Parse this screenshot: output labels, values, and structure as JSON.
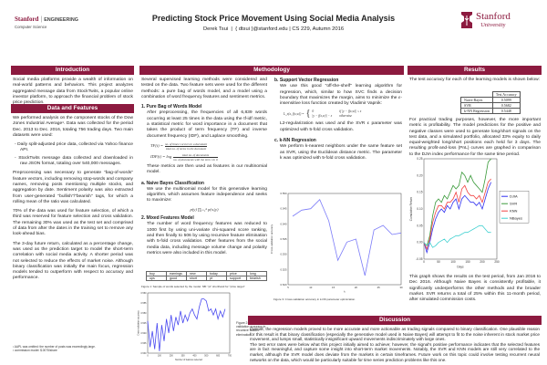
{
  "header": {
    "left_logo": {
      "brand": "Stanford",
      "divider": "|",
      "dept": "ENGINEERING",
      "sub": "Computer Science"
    },
    "title": "Predicting Stock Price Movement Using Social Media Analysis",
    "authors": "Derek Tsui  |  { dtsui }@stanford.edu | CS 229, Autumn 2016",
    "right_logo": {
      "line1": "Stanford",
      "line2": "University"
    },
    "accent_color": "#8c1a3f"
  },
  "introduction": {
    "title": "Introduction",
    "text": "Social media platforms provide a wealth of information on real-world patterns and behaviors. This project analyzes aggregated message data from StockTwits, a popular online investor platform, to approach the financial problem of stock price prediction."
  },
  "data_features": {
    "title": "Data and Features",
    "p1": "We performed analysis on the component stocks of the Dow Jones Industrial Average¹. Data was collected for the period Dec. 2013 to Dec. 2016, totaling 756 trading days. Two main datasets were used:",
    "bullets": [
      "-  Daily split-adjusted price data, collected via Yahoo finance API.",
      "-  StockTwits message data collected and downloaded in raw JSON format, totaling over 540,000 messages."
    ],
    "p2": "Preprocessing was necessary to generate \"bag-of-words\" feature vectors, including removing stop-words and company names, removing posts mentioning multiple stocks, and aggregation by date. Sentiment polarity was also extracted from user-generated \"bullish\"/\"bearish\" tags, for which a rolling mean of the ratio was calculated.",
    "p3": "70% of the data was used for feature selection, of which a third was reserved for feature selection and cross validation. The remaining 30% was used as the test set and comprised of data from after the dates in the training set to remove any look-ahead bias.",
    "p4": "The 3-day future return, calculated as a percentage change, was used as the prediction target to model the short-term correlation with social media activity. A shorter period was not selected to reduce the effects of market noise. Although binary classification was initially the main focus, regression models tended to outperform with respect to accuracy and performance.",
    "footnotes": [
      "¹ AAPL was omitted: the number of posts was exceedingly large.",
      "² commission model: $.0075/share"
    ]
  },
  "methodology": {
    "title": "Methodology",
    "intro": "Several supervised learning methods were considered and tested on the data. Two feature sets were used for the different methods: a pure bag of words model, and a model using a combination of word frequency features and sentiment metrics.",
    "bow_title": "1. Pure Bag of Words Model",
    "bow_text": "After preprocessing, the frequencies of all 6,839 words occurring at least 25 times in the data using the tf-idf metric, a statistical metric for word importance in a document that takes the product of term frequency (TF) and inverse document frequency (IDF), and Laplace smoothing.",
    "tf_lhs": "TF(t) =",
    "tf_num": "no. of times t occurs in a document",
    "tf_den": "total no. of terms in the document",
    "idf_lhs": "IDF(t) = log",
    "idf_num": "total no. of documents",
    "idf_den": "no. of documents with the term t in it",
    "bow_after": "These metrics are then used as features in our multinomial model.",
    "nb_title": "a. Naive Bayes Classification",
    "nb_text": "We use the multinomial model for this generative learning algorithm, which assumes feature independence and seeks to maximize:",
    "nb_formula": "p(y) ∏ᵢ₌₁ⁿ p(xᵢ|y)",
    "mixed_title": "2. Mixed Features Model",
    "mixed_text": "The number of word frequency features was reduced to 1000 first by using uni-variate chi-squared score ranking, and then finally to 506 by using recursive feature elimination with 5-fold cross validation. Other features from the social media data, including message volume change and polarity metrics were also included in this model.",
    "words_table": [
      [
        "buy",
        "earnings",
        "new",
        "today",
        "price",
        "long"
      ],
      [
        "ups",
        "good",
        "short",
        "pt",
        "support",
        "bearish"
      ]
    ],
    "fig1_caption": "Figure 1: Sample of words selected by the model. NB: \"pt\" shorthand for \"price target\"",
    "fig2_caption": "Figure 2: Cross-validation accuracy in recursive feature elimination",
    "svr_title": "b. Support Vector Regression",
    "svr_text": "We use this good \"off-the-shelf\" learning algorithm for regression, which, similar to how SVC finds a decision boundary that maximizes the margin, aims to minimize the ε-insensitive loss function created by Vladimir Vapnik:",
    "svr_lhs": "L_ε(x, f(x,w)) =",
    "svr_case1": "0",
    "svr_case1_cond": "if |y − f(x,w)| ≤ ε",
    "svr_case2": "|y − f(x,w)| − ε",
    "svr_case2_cond": "otherwise",
    "svr_after": "L2-regularization was used and the SVR ε parameter was optimized with 5-fold cross validation.",
    "knn_title": "c. k-NN Regression",
    "knn_text": "We perform k-nearest neighbors under the same feature set as SVR, using the Euclidean distance metric. The parameter k was optimized with 5-fold cross validation.",
    "fig3_caption": "Figure 3: Cross-validation accuracy in k-NN parameter optimization."
  },
  "results": {
    "title": "Results",
    "intro": "The test accuracy for each of the learning models is shown below:",
    "table_header": "Test Accuracy",
    "table_rows": [
      [
        "Naive Bayes",
        "0.5099"
      ],
      [
        "SVR",
        "0.5682"
      ],
      [
        "k-NN Regression",
        "0.5448"
      ]
    ],
    "p2": "For practical trading purposes, however, the more important metric is profitability. The model predictions for the positive and negative classes were used to generate long/short signals on the test data, and a simulated portfolio, allocated 33% equity to daily equal-weighted long/short positions each held for 3 days. The resulting profit-and-loss (PnL) curves are graphed in comparison to the DJIA index performance for the same time period.",
    "p3": "This graph shows the results on the test period, from Jan 2016 to Dec 2016. Although Naive Bayes is consistently profitable, it significantly underperforms the other methods and the broader market. SVR returns a total of 25% within this 11-month period, after simulated commission costs."
  },
  "discussion": {
    "title": "Discussion",
    "p1": "Overall, the regression models proved to be more accurate and more actionable as trading signals compared to binary classification. One plausible reason for this result is that binary classification (especially the generative model used in Naive Bayes) will attempt to fit to the noise inherent in stock market price movement, and lumps small, statistically insignificant upward movements indiscriminately with large ones.",
    "p2": "The test error rates were below what this project initially aimed to achieve; however, the signal's positive performance indicates that the selected features are in fact meaningful, and capture some insight into short-term market movements. Notably, the SVR and KNN models are still very correlated to the market, although the SVR model does deviate from the markets in certain timeframes. Future work on this topic could involve testing recurrent neural networks on the data, which would be particularly suitable for time series prediction problems like this one."
  },
  "chart_data": [
    {
      "id": "fig2",
      "type": "line",
      "xlabel": "Number of features selected",
      "ylabel": "Cross-validation accuracy",
      "xlim": [
        0,
        700
      ],
      "ylim": [
        0.53,
        0.56
      ],
      "xticks": [
        "0",
        "100",
        "200",
        "300",
        "400",
        "500",
        "600",
        "700"
      ],
      "yticks": [
        "0.530",
        "0.535",
        "0.540",
        "0.545",
        "0.550",
        "0.555",
        "0.560"
      ],
      "series": [
        {
          "color": "#4a4af0",
          "x": [
            0,
            20,
            40,
            60,
            80,
            100,
            120,
            140,
            160,
            180,
            200,
            220,
            240,
            260,
            280,
            300,
            320,
            340,
            360,
            380,
            400,
            420,
            440,
            460,
            480,
            500,
            520,
            540,
            560,
            580,
            600,
            620,
            640,
            660
          ],
          "y": [
            0.546,
            0.533,
            0.541,
            0.532,
            0.545,
            0.531,
            0.544,
            0.536,
            0.547,
            0.54,
            0.549,
            0.541,
            0.548,
            0.544,
            0.551,
            0.545,
            0.549,
            0.546,
            0.55,
            0.552,
            0.549,
            0.547,
            0.553,
            0.557,
            0.557,
            0.556,
            0.551,
            0.552,
            0.549,
            0.552,
            0.547,
            0.551,
            0.548,
            0.552
          ]
        }
      ]
    },
    {
      "id": "fig3",
      "type": "line",
      "xlabel": "k",
      "ylabel": "Cross-validation accuracy",
      "xlim": [
        5,
        30
      ],
      "ylim": [
        0.52,
        0.55
      ],
      "xticks": [
        "5",
        "10",
        "15",
        "20",
        "25",
        "30"
      ],
      "yticks": [
        "0.520",
        "0.525",
        "0.530",
        "0.535",
        "0.540",
        "0.545",
        "0.550"
      ],
      "series": [
        {
          "color": "#7c7cf8",
          "x": [
            6,
            8,
            10,
            12,
            14,
            16,
            18,
            20,
            22,
            24,
            26,
            28,
            30
          ],
          "y": [
            0.5425,
            0.5445,
            0.545,
            0.548,
            0.541,
            0.528,
            0.534,
            0.535,
            0.523,
            0.538,
            0.5395,
            0.5365,
            0.537
          ]
        }
      ]
    },
    {
      "id": "pnl",
      "type": "line",
      "xlabel": "Days",
      "ylabel": "Cumulative Return",
      "xlim": [
        0,
        250
      ],
      "ylim": [
        -0.05,
        0.25
      ],
      "xticks": [
        "0",
        "50",
        "100",
        "150",
        "200",
        "250"
      ],
      "yticks": [
        "-0.05",
        "0.00",
        "0.05",
        "0.10",
        "0.15",
        "0.20",
        "0.25"
      ],
      "legend": "right",
      "series": [
        {
          "name": "DJIA",
          "color": "#3030f0",
          "x": [
            0,
            10,
            20,
            30,
            40,
            50,
            60,
            70,
            80,
            90,
            100,
            110,
            120,
            130,
            140,
            150,
            160,
            170,
            180,
            190,
            200,
            210,
            220,
            230
          ],
          "y": [
            0,
            -0.03,
            0.0,
            0.04,
            0.07,
            0.09,
            0.1,
            0.09,
            0.11,
            0.1,
            0.12,
            0.13,
            0.1,
            0.13,
            0.14,
            0.13,
            0.12,
            0.12,
            0.11,
            0.12,
            0.1,
            0.13,
            0.16,
            0.18
          ]
        },
        {
          "name": "SVR",
          "color": "#3a9a3a",
          "x": [
            0,
            10,
            20,
            30,
            40,
            50,
            60,
            70,
            80,
            90,
            100,
            110,
            120,
            130,
            140,
            150,
            160,
            170,
            180,
            190,
            200,
            210,
            220,
            230
          ],
          "y": [
            0,
            -0.01,
            0.02,
            0.08,
            0.12,
            0.13,
            0.12,
            0.14,
            0.13,
            0.15,
            0.17,
            0.16,
            0.17,
            0.21,
            0.2,
            0.18,
            0.2,
            0.18,
            0.17,
            0.16,
            0.15,
            0.19,
            0.24,
            0.25
          ]
        },
        {
          "name": "KNN",
          "color": "#f04040",
          "x": [
            0,
            10,
            20,
            30,
            40,
            50,
            60,
            70,
            80,
            90,
            100,
            110,
            120,
            130,
            140,
            150,
            160,
            170,
            180,
            190,
            200,
            210,
            220,
            230
          ],
          "y": [
            0,
            -0.02,
            0.01,
            0.06,
            0.09,
            0.11,
            0.11,
            0.1,
            0.12,
            0.12,
            0.13,
            0.15,
            0.12,
            0.16,
            0.17,
            0.15,
            0.14,
            0.14,
            0.13,
            0.14,
            0.12,
            0.15,
            0.18,
            0.19
          ]
        },
        {
          "name": "NBayes",
          "color": "#40d0d0",
          "x": [
            0,
            10,
            20,
            30,
            40,
            50,
            60,
            70,
            80,
            90,
            100,
            110,
            120,
            130,
            140,
            150,
            160,
            170,
            180,
            190,
            200,
            210,
            220,
            230
          ],
          "y": [
            0,
            -0.01,
            0.0,
            -0.015,
            -0.01,
            0.0,
            0.005,
            0.01,
            0.0,
            0.01,
            0.015,
            0.02,
            0.02,
            0.025,
            0.03,
            0.03,
            0.035,
            0.04,
            0.045,
            0.05,
            0.05,
            0.04,
            0.03,
            0.03
          ]
        }
      ]
    }
  ]
}
